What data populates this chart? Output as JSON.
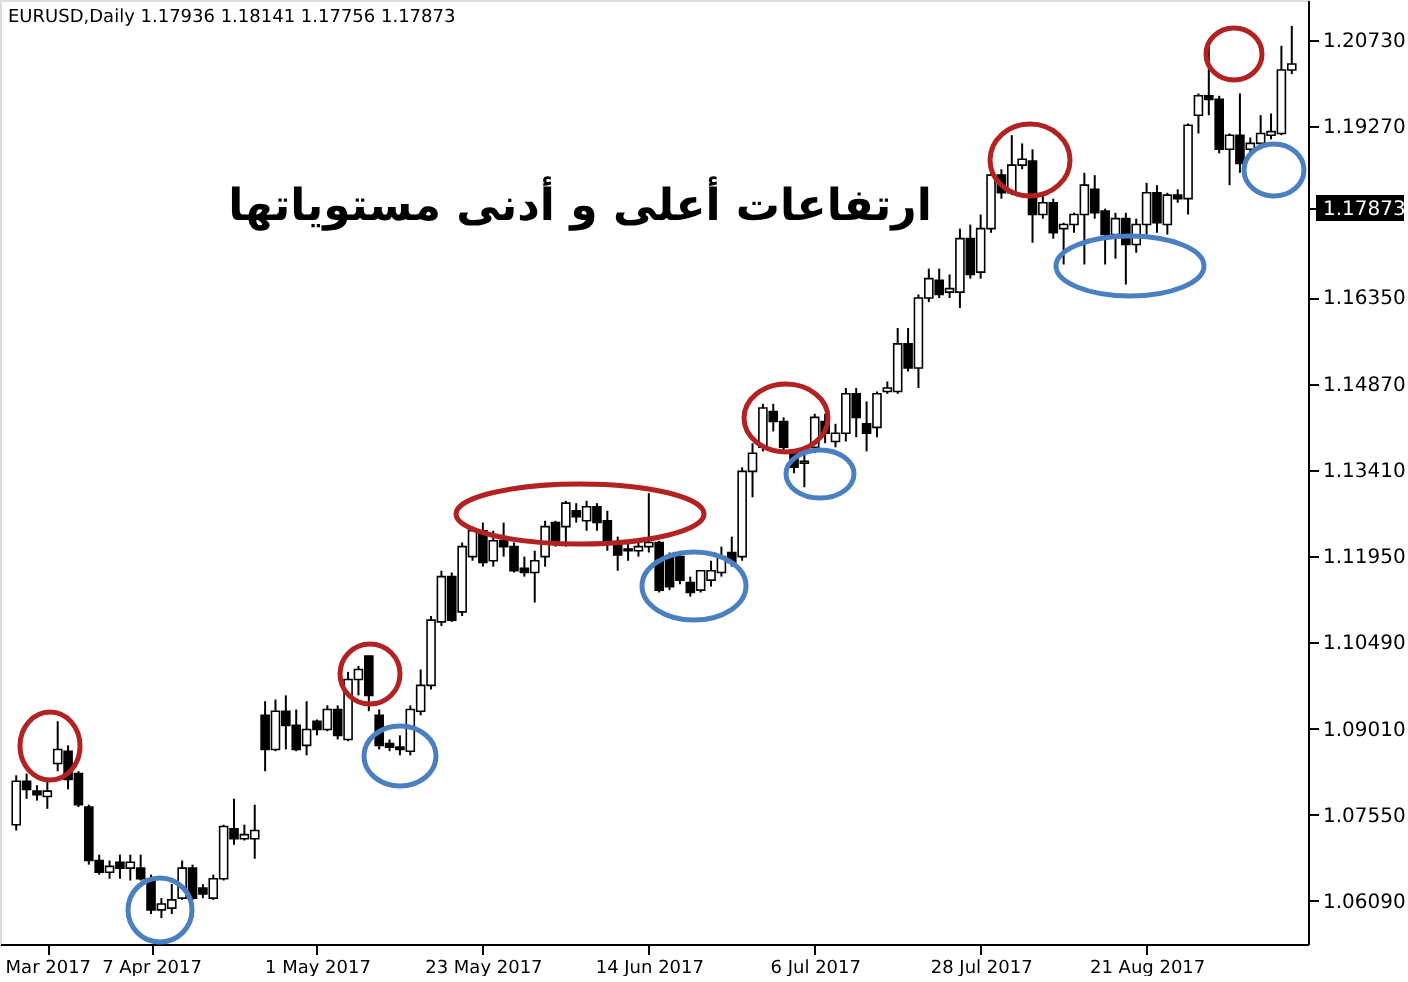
{
  "chart_data": {
    "type": "candlestick",
    "title": "EURUSD,Daily  1.17936 1.18141 1.17756 1.17873",
    "annotations": [
      "ارتفاعات أعلى و أدنى مستوياتها"
    ],
    "categories": [
      null,
      null,
      null,
      "Mar 2017",
      null,
      null,
      null,
      null,
      null,
      null,
      null,
      null,
      null,
      "7 Apr 2017",
      null,
      null,
      null,
      null,
      null,
      null,
      null,
      null,
      null,
      null,
      null,
      null,
      null,
      null,
      null,
      "1 May 2017",
      null,
      null,
      null,
      null,
      null,
      null,
      null,
      null,
      null,
      null,
      null,
      null,
      null,
      null,
      null,
      "23 May 2017",
      null,
      null,
      null,
      null,
      null,
      null,
      null,
      null,
      null,
      null,
      null,
      null,
      null,
      null,
      null,
      "14 Jun 2017",
      null,
      null,
      null,
      null,
      null,
      null,
      null,
      null,
      null,
      null,
      null,
      null,
      null,
      null,
      null,
      "6 Jul 2017",
      null,
      null,
      null,
      null,
      null,
      null,
      null,
      null,
      null,
      null,
      null,
      null,
      null,
      null,
      null,
      "28 Jul 2017",
      null,
      null,
      null,
      null,
      null,
      null,
      null,
      null,
      null,
      null,
      null,
      null,
      null,
      null,
      null,
      "21 Aug 2017",
      null,
      null,
      null,
      null,
      null,
      null,
      null,
      null,
      null,
      null,
      null,
      null,
      null,
      null
    ],
    "ohlc": [
      [
        1.0738,
        1.0822,
        1.0728,
        1.0812
      ],
      [
        1.0812,
        1.0825,
        1.0782,
        1.0798
      ],
      [
        1.0795,
        1.0805,
        1.0779,
        1.0789
      ],
      [
        1.0786,
        1.0812,
        1.0765,
        1.0795
      ],
      [
        1.0842,
        1.0914,
        1.0829,
        1.0866
      ],
      [
        1.0863,
        1.0873,
        1.0798,
        1.0815
      ],
      [
        1.0825,
        1.0829,
        1.0768,
        1.0772
      ],
      [
        1.0768,
        1.0772,
        1.067,
        1.0677
      ],
      [
        1.0677,
        1.0687,
        1.0653,
        1.0657
      ],
      [
        1.0657,
        1.0677,
        1.0646,
        1.0667
      ],
      [
        1.0674,
        1.0687,
        1.0646,
        1.0664
      ],
      [
        1.0664,
        1.0687,
        1.0643,
        1.0674
      ],
      [
        1.0664,
        1.0687,
        1.0643,
        1.0646
      ],
      [
        1.0646,
        1.0653,
        1.0586,
        1.0593
      ],
      [
        1.0593,
        1.0613,
        1.0579,
        1.0603
      ],
      [
        1.0596,
        1.0637,
        1.0586,
        1.061
      ],
      [
        1.0613,
        1.0677,
        1.061,
        1.0664
      ],
      [
        1.0664,
        1.067,
        1.061,
        1.0613
      ],
      [
        1.063,
        1.0637,
        1.0613,
        1.062
      ],
      [
        1.0613,
        1.0653,
        1.061,
        1.0646
      ],
      [
        1.0646,
        1.0738,
        1.0643,
        1.0735
      ],
      [
        1.0731,
        1.0782,
        1.0704,
        1.0714
      ],
      [
        1.0714,
        1.0738,
        1.0711,
        1.0721
      ],
      [
        1.0714,
        1.0772,
        1.068,
        1.0728
      ],
      [
        1.0924,
        1.0948,
        1.0829,
        1.0866
      ],
      [
        1.0866,
        1.0951,
        1.0863,
        1.0931
      ],
      [
        1.0931,
        1.0958,
        1.0866,
        1.0907
      ],
      [
        1.0907,
        1.0934,
        1.0863,
        1.0866
      ],
      [
        1.0873,
        1.0948,
        1.0856,
        1.09
      ],
      [
        1.0914,
        1.0917,
        1.089,
        1.09
      ],
      [
        1.09,
        1.0941,
        1.0897,
        1.0934
      ],
      [
        1.0934,
        1.0941,
        1.0883,
        1.089
      ],
      [
        1.0883,
        1.0998,
        1.088,
        1.0985
      ],
      [
        1.0985,
        1.1008,
        1.0958,
        1.1002
      ],
      [
        1.1025,
        1.1025,
        1.0931,
        1.0958
      ],
      [
        1.0924,
        1.0934,
        1.0866,
        1.0873
      ],
      [
        1.0876,
        1.0883,
        1.0863,
        1.087
      ],
      [
        1.087,
        1.089,
        1.0856,
        1.0866
      ],
      [
        1.0863,
        1.0941,
        1.0856,
        1.0934
      ],
      [
        1.0931,
        1.1002,
        1.0924,
        1.0975
      ],
      [
        1.0975,
        1.1093,
        1.0968,
        1.1086
      ],
      [
        1.1083,
        1.117,
        1.1076,
        1.116
      ],
      [
        1.116,
        1.1167,
        1.1083,
        1.1086
      ],
      [
        1.11,
        1.1218,
        1.1093,
        1.1211
      ],
      [
        1.1194,
        1.1245,
        1.1187,
        1.1238
      ],
      [
        1.1238,
        1.1252,
        1.1177,
        1.1184
      ],
      [
        1.1187,
        1.1238,
        1.1177,
        1.1221
      ],
      [
        1.1221,
        1.1252,
        1.1194,
        1.1211
      ],
      [
        1.1211,
        1.1218,
        1.1167,
        1.117
      ],
      [
        1.1174,
        1.1194,
        1.116,
        1.1167
      ],
      [
        1.1167,
        1.1204,
        1.1116,
        1.1187
      ],
      [
        1.1194,
        1.1255,
        1.1177,
        1.1245
      ],
      [
        1.1252,
        1.1255,
        1.1211,
        1.1218
      ],
      [
        1.1245,
        1.1289,
        1.1211,
        1.1285
      ],
      [
        1.1272,
        1.1285,
        1.1252,
        1.1262
      ],
      [
        1.1255,
        1.1289,
        1.1238,
        1.1279
      ],
      [
        1.1279,
        1.1285,
        1.1238,
        1.1252
      ],
      [
        1.1255,
        1.1272,
        1.1204,
        1.1218
      ],
      [
        1.1214,
        1.1228,
        1.117,
        1.1197
      ],
      [
        1.1207,
        1.1221,
        1.1187,
        1.1204
      ],
      [
        1.1204,
        1.1221,
        1.1194,
        1.1211
      ],
      [
        1.1211,
        1.1302,
        1.1201,
        1.1218
      ],
      [
        1.1218,
        1.1221,
        1.1133,
        1.1137
      ],
      [
        1.1194,
        1.1201,
        1.1137,
        1.1143
      ],
      [
        1.1194,
        1.1204,
        1.1147,
        1.1154
      ],
      [
        1.115,
        1.116,
        1.1126,
        1.1133
      ],
      [
        1.1137,
        1.117,
        1.1133,
        1.117
      ],
      [
        1.1154,
        1.1187,
        1.1143,
        1.117
      ],
      [
        1.1167,
        1.1211,
        1.116,
        1.1194
      ],
      [
        1.1201,
        1.1228,
        1.1177,
        1.1184
      ],
      [
        1.1194,
        1.1346,
        1.1187,
        1.1339
      ],
      [
        1.1339,
        1.1387,
        1.1295,
        1.137
      ],
      [
        1.138,
        1.1454,
        1.1373,
        1.1447
      ],
      [
        1.1441,
        1.1454,
        1.1407,
        1.1424
      ],
      [
        1.1424,
        1.1431,
        1.1373,
        1.138
      ],
      [
        1.137,
        1.1373,
        1.1336,
        1.1346
      ],
      [
        1.1353,
        1.1373,
        1.1312,
        1.1356
      ],
      [
        1.138,
        1.1437,
        1.137,
        1.1431
      ],
      [
        1.1424,
        1.1437,
        1.1387,
        1.1404
      ],
      [
        1.139,
        1.142,
        1.138,
        1.1404
      ],
      [
        1.1404,
        1.1481,
        1.139,
        1.1471
      ],
      [
        1.1471,
        1.1481,
        1.1397,
        1.1431
      ],
      [
        1.142,
        1.1458,
        1.1373,
        1.1404
      ],
      [
        1.1414,
        1.1475,
        1.1397,
        1.1471
      ],
      [
        1.1475,
        1.1492,
        1.1471,
        1.1481
      ],
      [
        1.1475,
        1.1583,
        1.1471,
        1.1556
      ],
      [
        1.1556,
        1.1583,
        1.1509,
        1.1515
      ],
      [
        1.1515,
        1.164,
        1.1481,
        1.1634
      ],
      [
        1.1634,
        1.1684,
        1.1627,
        1.1667
      ],
      [
        1.1664,
        1.1684,
        1.1634,
        1.164
      ],
      [
        1.1644,
        1.1674,
        1.1634,
        1.165
      ],
      [
        1.1644,
        1.1752,
        1.1617,
        1.1735
      ],
      [
        1.1735,
        1.1759,
        1.1667,
        1.1674
      ],
      [
        1.1678,
        1.1776,
        1.1667,
        1.1752
      ],
      [
        1.1752,
        1.1847,
        1.1745,
        1.1843
      ],
      [
        1.1843,
        1.1853,
        1.1803,
        1.1813
      ],
      [
        1.1813,
        1.1911,
        1.1809,
        1.186
      ],
      [
        1.186,
        1.1897,
        1.1853,
        1.187
      ],
      [
        1.1867,
        1.1887,
        1.1728,
        1.1776
      ],
      [
        1.1776,
        1.1813,
        1.1769,
        1.1796
      ],
      [
        1.1796,
        1.1803,
        1.1735,
        1.1745
      ],
      [
        1.1752,
        1.1762,
        1.1691,
        1.1759
      ],
      [
        1.1759,
        1.1779,
        1.1745,
        1.1776
      ],
      [
        1.1776,
        1.1847,
        1.1691,
        1.1826
      ],
      [
        1.1819,
        1.1843,
        1.1769,
        1.1779
      ],
      [
        1.1782,
        1.1786,
        1.1691,
        1.1742
      ],
      [
        1.1742,
        1.1779,
        1.1701,
        1.1769
      ],
      [
        1.1769,
        1.1779,
        1.1657,
        1.1725
      ],
      [
        1.1725,
        1.1769,
        1.1711,
        1.1759
      ],
      [
        1.1759,
        1.183,
        1.1742,
        1.1813
      ],
      [
        1.1813,
        1.1826,
        1.1745,
        1.1762
      ],
      [
        1.1759,
        1.1813,
        1.1742,
        1.1809
      ],
      [
        1.1809,
        1.1819,
        1.1796,
        1.1803
      ],
      [
        1.1803,
        1.1931,
        1.1776,
        1.1928
      ],
      [
        1.1945,
        1.1982,
        1.1914,
        1.1978
      ],
      [
        1.1978,
        1.2073,
        1.1945,
        1.1972
      ],
      [
        1.1972,
        1.1978,
        1.188,
        1.1887
      ],
      [
        1.1887,
        1.1914,
        1.1826,
        1.1911
      ],
      [
        1.1911,
        1.1982,
        1.1847,
        1.1863
      ],
      [
        1.1887,
        1.1907,
        1.1877,
        1.1897
      ],
      [
        1.1897,
        1.1945,
        1.1887,
        1.1914
      ],
      [
        1.1911,
        1.1948,
        1.1904,
        1.1917
      ],
      [
        1.1914,
        1.2063,
        1.1911,
        1.2022
      ],
      [
        1.2022,
        1.2097,
        1.2015,
        1.2032
      ]
    ],
    "ylim": [
      1.0535,
      1.2141
    ],
    "yticks": [
      {
        "value": 1.0609,
        "label": "1.06090"
      },
      {
        "value": 1.0755,
        "label": "1.07550"
      },
      {
        "value": 1.0901,
        "label": "1.09010"
      },
      {
        "value": 1.1049,
        "label": "1.10490"
      },
      {
        "value": 1.1195,
        "label": "1.11950"
      },
      {
        "value": 1.1341,
        "label": "1.13410"
      },
      {
        "value": 1.1487,
        "label": "1.14870"
      },
      {
        "value": 1.1635,
        "label": "1.16350"
      },
      {
        "value": 1.17873,
        "label": "1.17873"
      },
      {
        "value": 1.1927,
        "label": "1.19270"
      },
      {
        "value": 1.2073,
        "label": "1.20730"
      }
    ]
  }
}
